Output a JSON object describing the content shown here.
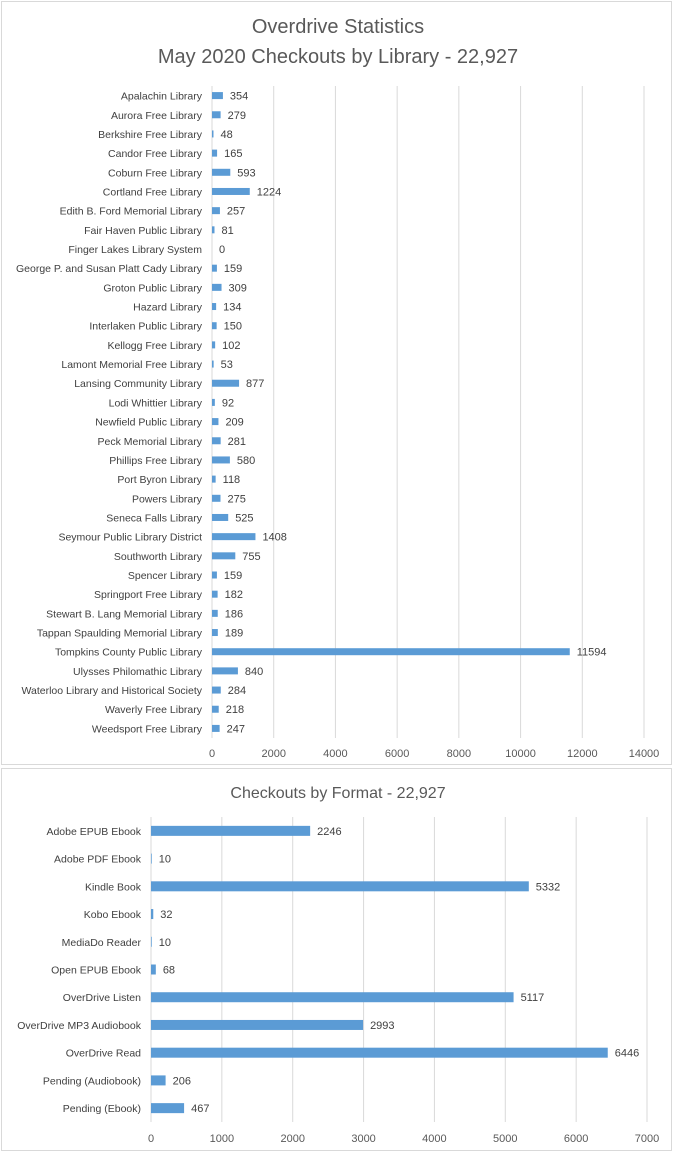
{
  "colors": {
    "bar": "#5b9bd5",
    "grid": "#d9d9d9",
    "text": "#595959"
  },
  "chart_data": [
    {
      "type": "bar",
      "orientation": "horizontal",
      "title": "Overdrive Statistics",
      "subtitle": "May 2020 Checkouts by Library - 22,927",
      "categories": [
        "Apalachin Library",
        "Aurora Free Library",
        "Berkshire Free Library",
        "Candor Free Library",
        "Coburn Free Library",
        "Cortland Free Library",
        "Edith B. Ford Memorial Library",
        "Fair Haven Public Library",
        "Finger Lakes Library System",
        "George P. and Susan Platt Cady Library",
        "Groton Public Library",
        "Hazard Library",
        "Interlaken Public Library",
        "Kellogg Free Library",
        "Lamont Memorial Free Library",
        "Lansing Community Library",
        "Lodi Whittier Library",
        "Newfield Public Library",
        "Peck Memorial Library",
        "Phillips Free Library",
        "Port Byron Library",
        "Powers Library",
        "Seneca Falls Library",
        "Seymour Public Library District",
        "Southworth Library",
        "Spencer Library",
        "Springport Free Library",
        "Stewart B. Lang Memorial Library",
        "Tappan Spaulding Memorial Library",
        "Tompkins County Public Library",
        "Ulysses Philomathic Library",
        "Waterloo Library and Historical Society",
        "Waverly Free Library",
        "Weedsport Free Library"
      ],
      "values": [
        354,
        279,
        48,
        165,
        593,
        1224,
        257,
        81,
        0,
        159,
        309,
        134,
        150,
        102,
        53,
        877,
        92,
        209,
        281,
        580,
        118,
        275,
        525,
        1408,
        755,
        159,
        182,
        186,
        189,
        11594,
        840,
        284,
        218,
        247
      ],
      "xlim": [
        0,
        14000
      ],
      "xticks": [
        0,
        2000,
        4000,
        6000,
        8000,
        10000,
        12000,
        14000
      ],
      "grid": true,
      "data_labels": true
    },
    {
      "type": "bar",
      "orientation": "horizontal",
      "title": "Checkouts by Format - 22,927",
      "categories": [
        "Adobe EPUB Ebook",
        "Adobe PDF Ebook",
        "Kindle Book",
        "Kobo Ebook",
        "MediaDo Reader",
        "Open EPUB Ebook",
        "OverDrive Listen",
        "OverDrive MP3 Audiobook",
        "OverDrive Read",
        "Pending (Audiobook)",
        "Pending (Ebook)"
      ],
      "values": [
        2246,
        10,
        5332,
        32,
        10,
        68,
        5117,
        2993,
        6446,
        206,
        467
      ],
      "xlim": [
        0,
        7000
      ],
      "xticks": [
        0,
        1000,
        2000,
        3000,
        4000,
        5000,
        6000,
        7000
      ],
      "grid": true,
      "data_labels": true
    }
  ]
}
